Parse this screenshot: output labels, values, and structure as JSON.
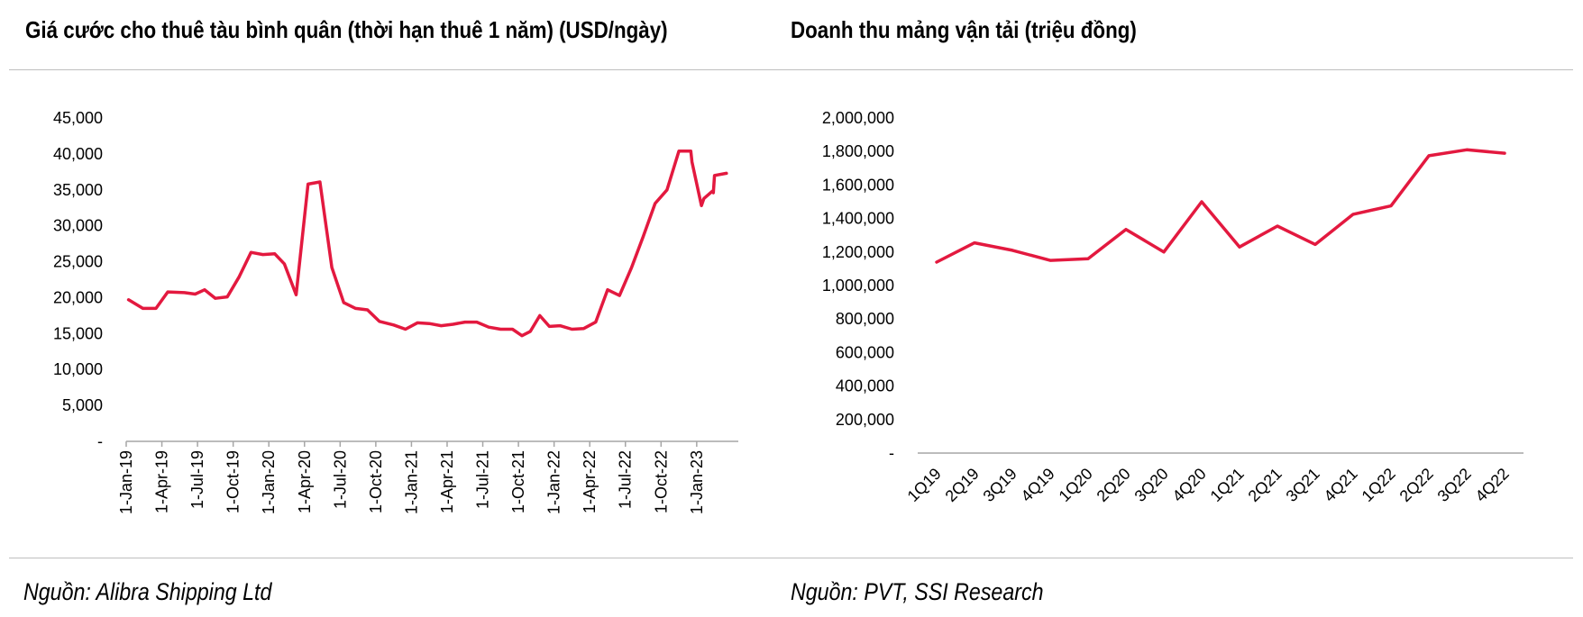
{
  "colors": {
    "line": "#e3193f",
    "axis": "#a6a6a6",
    "rule": "#bfbfbf"
  },
  "chart_data": [
    {
      "type": "line",
      "title": "Giá cước cho thuê tàu bình quân (thời hạn thuê 1 năm) (USD/ngày)",
      "source": "Nguồn: Alibra Shipping Ltd",
      "xlabel": "",
      "ylabel": "",
      "ylim": [
        0,
        45000
      ],
      "yticks": [
        0,
        5000,
        10000,
        15000,
        20000,
        25000,
        30000,
        35000,
        40000,
        45000
      ],
      "ytick_labels": [
        "-",
        "5,000",
        "10,000",
        "15,000",
        "20,000",
        "25,000",
        "30,000",
        "35,000",
        "40,000",
        "45,000"
      ],
      "xlim": [
        0,
        51.5
      ],
      "xticks": [
        0,
        3,
        6,
        9,
        12,
        15,
        18,
        21,
        24,
        27,
        30,
        33,
        36,
        39,
        42,
        45,
        48
      ],
      "xtick_labels": [
        "1-Jan-19",
        "1-Apr-19",
        "1-Jul-19",
        "1-Oct-19",
        "1-Jan-20",
        "1-Apr-20",
        "1-Jul-20",
        "1-Oct-20",
        "1-Jan-21",
        "1-Apr-21",
        "1-Jul-21",
        "1-Oct-21",
        "1-Jan-22",
        "1-Apr-22",
        "1-Jul-22",
        "1-Oct-22",
        "1-Jan-23"
      ],
      "series": [
        {
          "name": "Giá cước cho thuê tàu bình quân",
          "x": [
            0.2,
            1.4,
            2.5,
            3.5,
            4.9,
            5.8,
            6.6,
            7.5,
            8.5,
            9.5,
            10.5,
            11.5,
            12.5,
            13.3,
            14.3,
            15.3,
            16.3,
            17.3,
            18.3,
            19.3,
            20.3,
            21.3,
            22.5,
            23.5,
            24.5,
            25.5,
            26.5,
            27.5,
            28.5,
            29.5,
            30.5,
            31.5,
            32.5,
            33.3,
            34.0,
            34.8,
            35.6,
            36.5,
            37.5,
            38.5,
            39.5,
            40.5,
            41.5,
            42.5,
            43.5,
            44.5,
            45.5,
            46.5,
            47.5,
            47.6,
            48.4,
            48.6,
            49.3,
            49.4,
            49.5,
            50.5
          ],
          "values": [
            19700,
            18500,
            18500,
            20800,
            20700,
            20500,
            21100,
            19900,
            20100,
            22900,
            26300,
            26000,
            26100,
            24700,
            20400,
            35800,
            36100,
            24200,
            19300,
            18500,
            18300,
            16700,
            16200,
            15600,
            16500,
            16400,
            16100,
            16300,
            16600,
            16600,
            15900,
            15600,
            15600,
            14700,
            15300,
            17500,
            16000,
            16100,
            15600,
            15700,
            16600,
            21100,
            20300,
            24100,
            28500,
            33100,
            35000,
            40400,
            40400,
            38900,
            32800,
            33800,
            34800,
            34600,
            37000,
            37300
          ]
        }
      ]
    },
    {
      "type": "line",
      "title": "Doanh thu mảng vận tải (triệu đồng)",
      "source": "Nguồn: PVT, SSI Research",
      "xlabel": "",
      "ylabel": "",
      "ylim": [
        0,
        2000000
      ],
      "yticks": [
        0,
        200000,
        400000,
        600000,
        800000,
        1000000,
        1200000,
        1400000,
        1600000,
        1800000,
        2000000
      ],
      "ytick_labels": [
        "-",
        "200,000",
        "400,000",
        "600,000",
        "800,000",
        "1,000,000",
        "1,200,000",
        "1,400,000",
        "1,600,000",
        "1,800,000",
        "2,000,000"
      ],
      "categories": [
        "1Q19",
        "2Q19",
        "3Q19",
        "4Q19",
        "1Q20",
        "2Q20",
        "3Q20",
        "4Q20",
        "1Q21",
        "2Q21",
        "3Q21",
        "4Q21",
        "1Q22",
        "2Q22",
        "3Q22",
        "4Q22"
      ],
      "series": [
        {
          "name": "Doanh thu mảng vận tải",
          "values": [
            1140000,
            1255000,
            1210000,
            1150000,
            1160000,
            1335000,
            1200000,
            1500000,
            1230000,
            1355000,
            1245000,
            1425000,
            1475000,
            1775000,
            1810000,
            1790000
          ]
        }
      ]
    }
  ]
}
